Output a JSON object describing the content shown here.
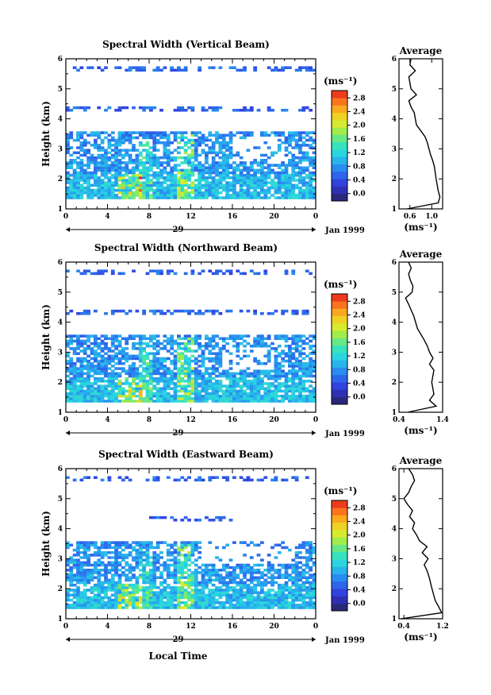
{
  "chart_data": [
    {
      "type": "heatmap",
      "title": "Spectral Width (Vertical Beam)",
      "xlabel": "",
      "ylabel": "Height (km)",
      "xlim": [
        0,
        24
      ],
      "ylim": [
        1,
        6
      ],
      "xticks": [
        "0",
        "4",
        "8",
        "12",
        "16",
        "20",
        "0"
      ],
      "yticks": [
        "1",
        "2",
        "3",
        "4",
        "5",
        "6"
      ],
      "date_day": "29",
      "date_month": "Jan 1999",
      "colorbar": {
        "unit_label": "(ms⁻¹)",
        "tick_labels": [
          "0.0",
          "0.4",
          "0.8",
          "1.2",
          "1.6",
          "2.0",
          "2.4",
          "2.8"
        ],
        "min": 0.0,
        "max": 2.8
      },
      "average_profile": {
        "title": "Average",
        "xlabel": "(ms⁻¹)",
        "xticks": [
          "0.6",
          "1.0"
        ],
        "xlim": [
          0.4,
          1.2
        ],
        "heights": [
          1.0,
          1.2,
          1.4,
          1.6,
          2.0,
          2.4,
          2.6,
          2.8,
          3.0,
          3.2,
          3.4,
          3.6,
          3.8,
          4.0,
          4.2,
          4.4,
          4.6,
          4.8,
          5.0,
          5.2,
          5.4,
          5.6,
          5.8,
          6.0
        ],
        "values": [
          0.55,
          1.12,
          1.15,
          1.12,
          1.08,
          1.05,
          1.02,
          0.98,
          0.95,
          0.92,
          0.88,
          0.8,
          0.72,
          0.7,
          0.68,
          0.62,
          0.58,
          0.72,
          0.62,
          0.6,
          0.58,
          0.7,
          0.6,
          0.62
        ]
      }
    },
    {
      "type": "heatmap",
      "title": "Spectral Width (Northward Beam)",
      "xlabel": "",
      "ylabel": "Height (km)",
      "xlim": [
        0,
        24
      ],
      "ylim": [
        1,
        6
      ],
      "xticks": [
        "0",
        "4",
        "8",
        "12",
        "16",
        "20",
        "0"
      ],
      "yticks": [
        "1",
        "2",
        "3",
        "4",
        "5",
        "6"
      ],
      "date_day": "29",
      "date_month": "Jan 1999",
      "colorbar": {
        "unit_label": "(ms⁻¹)",
        "tick_labels": [
          "0.0",
          "0.4",
          "0.8",
          "1.2",
          "1.6",
          "2.0",
          "2.4",
          "2.8"
        ],
        "min": 0.0,
        "max": 2.8
      },
      "average_profile": {
        "title": "Average",
        "xlabel": "(ms⁻¹)",
        "xticks": [
          "0.4",
          "1.4"
        ],
        "xlim": [
          0.4,
          1.4
        ],
        "heights": [
          1.0,
          1.2,
          1.4,
          1.6,
          2.0,
          2.4,
          2.6,
          2.8,
          3.0,
          3.2,
          3.4,
          3.6,
          3.8,
          4.0,
          4.2,
          4.4,
          4.6,
          4.8,
          5.0,
          5.2,
          5.4,
          5.6,
          5.8,
          6.0
        ],
        "values": [
          0.6,
          1.25,
          1.1,
          1.2,
          1.15,
          1.2,
          1.1,
          1.18,
          1.1,
          1.05,
          0.98,
          0.9,
          0.82,
          0.78,
          0.74,
          0.68,
          0.62,
          0.55,
          0.7,
          0.72,
          0.66,
          0.62,
          0.68,
          0.62
        ]
      }
    },
    {
      "type": "heatmap",
      "title": "Spectral Width (Eastward Beam)",
      "xlabel": "Local Time",
      "ylabel": "Height (km)",
      "xlim": [
        0,
        24
      ],
      "ylim": [
        1,
        6
      ],
      "xticks": [
        "0",
        "4",
        "8",
        "12",
        "16",
        "20",
        "0"
      ],
      "yticks": [
        "1",
        "2",
        "3",
        "4",
        "5",
        "6"
      ],
      "date_day": "29",
      "date_month": "Jan 1999",
      "colorbar": {
        "unit_label": "(ms⁻¹)",
        "tick_labels": [
          "0.0",
          "0.4",
          "0.8",
          "1.2",
          "1.6",
          "2.0",
          "2.4",
          "2.8"
        ],
        "min": 0.0,
        "max": 2.8
      },
      "average_profile": {
        "title": "Average",
        "xlabel": "(ms⁻¹)",
        "xticks": [
          "0.4",
          "1.2"
        ],
        "xlim": [
          0.3,
          1.2
        ],
        "heights": [
          1.0,
          1.2,
          1.4,
          1.6,
          2.0,
          2.4,
          2.6,
          2.8,
          3.0,
          3.2,
          3.4,
          3.6,
          3.8,
          4.0,
          4.2,
          4.4,
          4.6,
          4.8,
          5.0,
          5.2,
          5.4,
          5.6,
          5.8,
          6.0
        ],
        "values": [
          0.35,
          1.18,
          1.12,
          1.05,
          0.98,
          0.92,
          0.88,
          0.82,
          0.9,
          0.78,
          0.88,
          0.72,
          0.66,
          0.58,
          0.62,
          0.52,
          0.58,
          0.48,
          0.4,
          0.5,
          0.55,
          0.62,
          0.58,
          0.5
        ]
      }
    }
  ]
}
